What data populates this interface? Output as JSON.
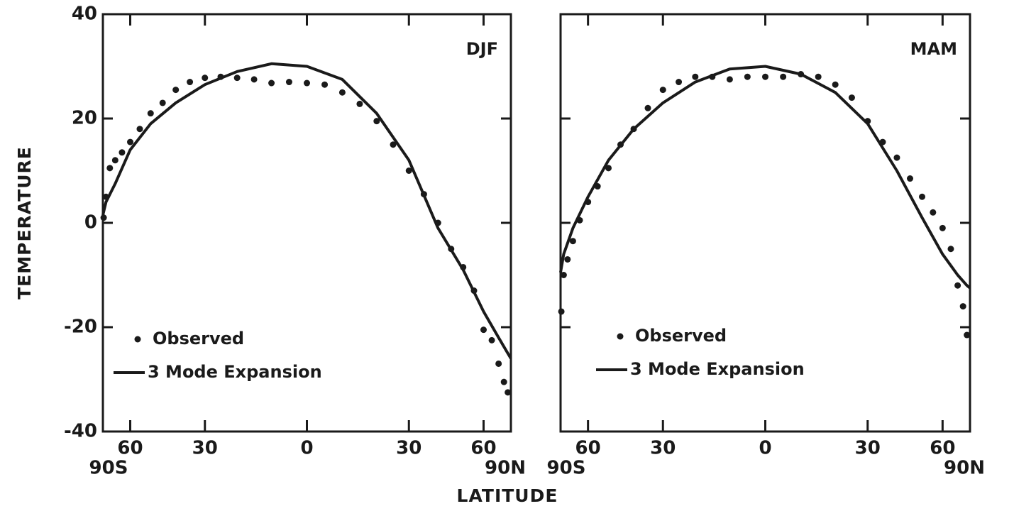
{
  "xlabel": "LATITUDE",
  "ylabel": "TEMPERATURE",
  "chart_data": [
    {
      "type": "line",
      "label": "DJF",
      "x_scale": "sine",
      "xlim": [
        -90,
        90
      ],
      "ylim": [
        -40,
        40
      ],
      "xticks": [
        {
          "value": -90,
          "label": "90S"
        },
        {
          "value": -60,
          "label": "60"
        },
        {
          "value": -30,
          "label": "30"
        },
        0,
        {
          "value": 30,
          "label": "30"
        },
        {
          "value": 60,
          "label": "60"
        },
        {
          "value": 90,
          "label": "90N"
        }
      ],
      "yticks": [
        -40,
        -20,
        0,
        20,
        40
      ],
      "series": [
        {
          "name": "Observed",
          "style": "markers",
          "color": "#1a1a1a",
          "x": [
            -85,
            -80,
            -75,
            -70,
            -65,
            -60,
            -55,
            -50,
            -45,
            -40,
            -35,
            -30,
            -25,
            -20,
            -15,
            -10,
            -5,
            0,
            5,
            10,
            15,
            20,
            25,
            30,
            35,
            40,
            45,
            50,
            55,
            60,
            65,
            70,
            75,
            80
          ],
          "values": [
            1,
            5,
            10.5,
            12,
            13.5,
            15.5,
            18,
            21,
            23,
            25.5,
            27,
            27.8,
            28,
            27.8,
            27.5,
            26.8,
            27,
            26.8,
            26.5,
            25,
            22.8,
            19.5,
            15,
            10,
            5.5,
            0,
            -5,
            -8.5,
            -13,
            -20.5,
            -22.5,
            -27,
            -30.5,
            -32.5
          ]
        },
        {
          "name": "3 Mode Expansion",
          "style": "line",
          "color": "#1a1a1a",
          "x": [
            -90,
            -80,
            -70,
            -60,
            -50,
            -40,
            -30,
            -20,
            -10,
            0,
            10,
            20,
            30,
            40,
            50,
            60,
            70,
            80,
            90
          ],
          "values": [
            1.5,
            4,
            7.5,
            14,
            19,
            23,
            26.5,
            29,
            30.5,
            30,
            27.5,
            21,
            12,
            -1,
            -9,
            -17,
            -22,
            -25,
            -26
          ]
        }
      ]
    },
    {
      "type": "line",
      "label": "MAM",
      "x_scale": "sine",
      "xlim": [
        -90,
        90
      ],
      "ylim": [
        -40,
        40
      ],
      "xticks": [
        {
          "value": -90,
          "label": "90S"
        },
        {
          "value": -60,
          "label": "60"
        },
        {
          "value": -30,
          "label": "30"
        },
        0,
        {
          "value": 30,
          "label": "30"
        },
        {
          "value": 60,
          "label": "60"
        },
        {
          "value": 90,
          "label": "90N"
        }
      ],
      "yticks": [
        -40,
        -20,
        0,
        20,
        40
      ],
      "series": [
        {
          "name": "Observed",
          "style": "markers",
          "color": "#1a1a1a",
          "x": [
            -85,
            -80,
            -75,
            -70,
            -65,
            -60,
            -55,
            -50,
            -45,
            -40,
            -35,
            -30,
            -25,
            -20,
            -15,
            -10,
            -5,
            0,
            5,
            10,
            15,
            20,
            25,
            30,
            35,
            40,
            45,
            50,
            55,
            60,
            65,
            70,
            75,
            80
          ],
          "values": [
            -17,
            -10,
            -7,
            -3.5,
            0.5,
            4,
            7,
            10.5,
            15,
            18,
            22,
            25.5,
            27,
            28,
            28,
            27.5,
            28,
            28,
            28,
            28.5,
            28,
            26.5,
            24,
            19.5,
            15.5,
            12.5,
            8.5,
            5,
            2,
            -1,
            -5,
            -12,
            -16,
            -21.5
          ]
        },
        {
          "name": "3 Mode Expansion",
          "style": "line",
          "color": "#1a1a1a",
          "x": [
            -90,
            -80,
            -70,
            -60,
            -50,
            -40,
            -30,
            -20,
            -10,
            0,
            10,
            20,
            30,
            40,
            50,
            60,
            70,
            80,
            90
          ],
          "values": [
            -9.5,
            -6,
            -1,
            5,
            12,
            18,
            23,
            27,
            29.5,
            30,
            28.5,
            25,
            19,
            10,
            1,
            -6,
            -10,
            -12,
            -12.5
          ]
        }
      ]
    }
  ]
}
